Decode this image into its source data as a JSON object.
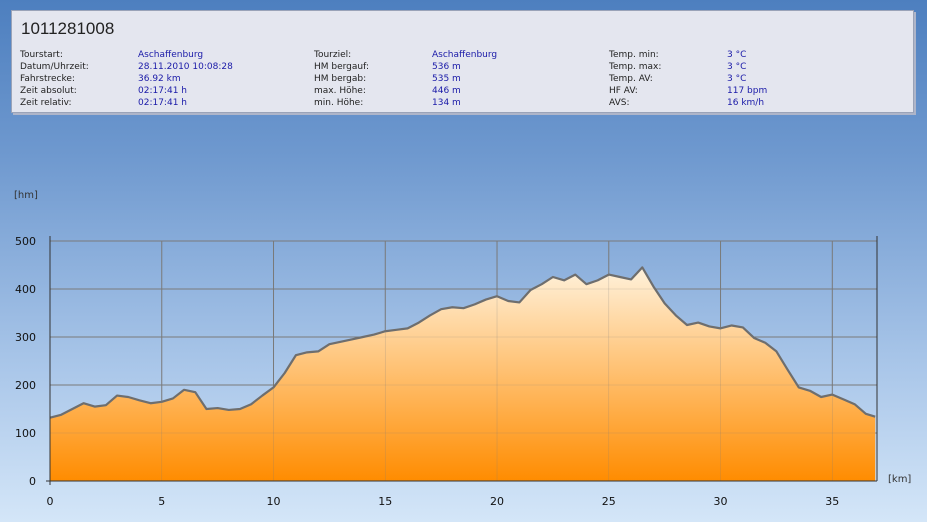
{
  "header": {
    "title": "1011281008",
    "info_columns": [
      [
        {
          "label": "Tourstart:",
          "value": "Aschaffenburg"
        },
        {
          "label": "Datum/Uhrzeit:",
          "value": "28.11.2010 10:08:28"
        },
        {
          "label": "Fahrstrecke:",
          "value": "36.92 km"
        },
        {
          "label": "Zeit absolut:",
          "value": "02:17:41 h"
        },
        {
          "label": "Zeit relativ:",
          "value": "02:17:41 h"
        }
      ],
      [
        {
          "label": "Tourziel:",
          "value": "Aschaffenburg"
        },
        {
          "label": "HM bergauf:",
          "value": "536 m"
        },
        {
          "label": "HM bergab:",
          "value": "535 m"
        },
        {
          "label": "max. Höhe:",
          "value": "446 m"
        },
        {
          "label": "min. Höhe:",
          "value": "134 m"
        }
      ],
      [
        {
          "label": "Temp. min:",
          "value": "3 °C"
        },
        {
          "label": "Temp. max:",
          "value": "3 °C"
        },
        {
          "label": "Temp. AV:",
          "value": "3 °C"
        },
        {
          "label": "HF AV:",
          "value": "117 bpm"
        },
        {
          "label": "AVS:",
          "value": "16 km/h"
        }
      ]
    ]
  },
  "colors": {
    "line": "#6e6e6e",
    "fill_top": "#fff2dc",
    "fill_bottom": "#ff8c00",
    "grid": "#7a7a7a"
  },
  "chart_data": {
    "type": "area",
    "title": "",
    "xlabel": "[km]",
    "ylabel": "[hm]",
    "xlim": [
      0,
      37
    ],
    "ylim": [
      0,
      500
    ],
    "x_ticks": [
      0,
      5,
      10,
      15,
      20,
      25,
      30,
      35
    ],
    "y_ticks": [
      0,
      100,
      200,
      300,
      400,
      500
    ],
    "grid": true,
    "series": [
      {
        "x": [
          0,
          0.5,
          1.0,
          1.5,
          2.0,
          2.5,
          3.0,
          3.5,
          4.0,
          4.5,
          5.0,
          5.5,
          6.0,
          6.5,
          7.0,
          7.5,
          8.0,
          8.5,
          9.0,
          9.5,
          10.0,
          10.5,
          11.0,
          11.5,
          12.0,
          12.5,
          13.0,
          13.5,
          14.0,
          14.5,
          15.0,
          15.5,
          16.0,
          16.5,
          17.0,
          17.5,
          18.0,
          18.5,
          19.0,
          19.5,
          20.0,
          20.5,
          21.0,
          21.5,
          22.0,
          22.5,
          23.0,
          23.5,
          24.0,
          24.5,
          25.0,
          25.5,
          26.0,
          26.5,
          27.0,
          27.5,
          28.0,
          28.5,
          29.0,
          29.5,
          30.0,
          30.5,
          31.0,
          31.5,
          32.0,
          32.5,
          33.0,
          33.5,
          34.0,
          34.5,
          35.0,
          35.5,
          36.0,
          36.5,
          36.92
        ],
        "y": [
          132,
          138,
          150,
          162,
          155,
          158,
          178,
          175,
          168,
          162,
          165,
          172,
          190,
          185,
          150,
          152,
          148,
          150,
          160,
          178,
          195,
          225,
          262,
          268,
          270,
          285,
          290,
          295,
          300,
          305,
          312,
          315,
          318,
          330,
          345,
          358,
          362,
          360,
          368,
          378,
          385,
          375,
          372,
          398,
          410,
          425,
          418,
          430,
          410,
          418,
          430,
          425,
          420,
          445,
          405,
          370,
          345,
          325,
          330,
          322,
          318,
          324,
          320,
          298,
          288,
          270,
          232,
          195,
          188,
          175,
          180,
          170,
          160,
          140,
          134
        ]
      }
    ]
  }
}
